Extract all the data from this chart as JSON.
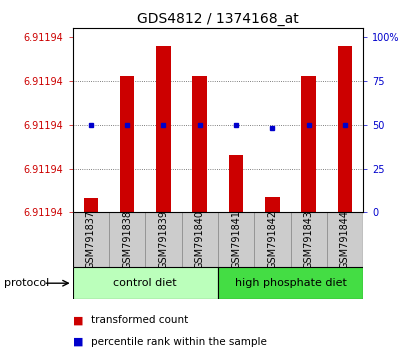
{
  "title": "GDS4812 / 1374168_at",
  "samples": [
    "GSM791837",
    "GSM791838",
    "GSM791839",
    "GSM791840",
    "GSM791841",
    "GSM791842",
    "GSM791843",
    "GSM791844"
  ],
  "group_labels": [
    "control diet",
    "high phosphate diet"
  ],
  "group_colors": [
    "#bbffbb",
    "#44dd44"
  ],
  "bar_heights": [
    0.08,
    0.78,
    0.95,
    0.78,
    0.33,
    0.09,
    0.78,
    0.95
  ],
  "percentile_ranks": [
    50,
    50,
    50,
    50,
    50,
    48,
    50,
    50
  ],
  "bar_color": "#cc0000",
  "dot_color": "#0000cc",
  "left_yticklabels": [
    "6.91194",
    "6.91194",
    "6.91194",
    "6.91194",
    "6.91194"
  ],
  "right_yticklabels": [
    "0",
    "25",
    "50",
    "75",
    "100%"
  ],
  "right_ytick_vals": [
    0,
    25,
    50,
    75,
    100
  ],
  "left_ytick_vals": [
    0.0,
    0.25,
    0.5,
    0.75,
    1.0
  ],
  "ylim": [
    0,
    1.05
  ],
  "protocol_label": "protocol",
  "legend_items": [
    "transformed count",
    "percentile rank within the sample"
  ],
  "legend_colors": [
    "#cc0000",
    "#0000cc"
  ],
  "bg_color": "#ffffff",
  "plot_bg_color": "#ffffff",
  "grid_color": "#555555",
  "tick_label_area_color": "#cccccc",
  "font_size_title": 10,
  "font_size_tick": 7,
  "font_size_label": 7,
  "font_size_legend": 7.5,
  "font_size_group": 8,
  "bar_width": 0.4
}
